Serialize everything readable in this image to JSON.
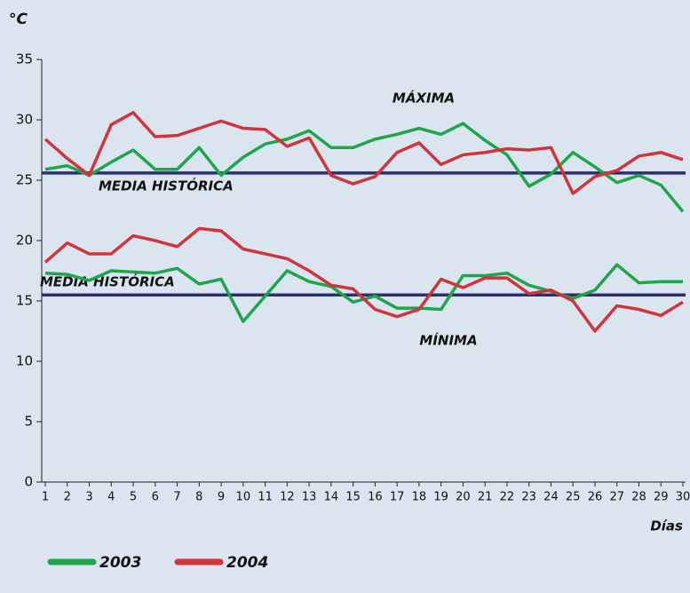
{
  "chart_data": {
    "type": "line",
    "y_label": "°C",
    "x_label": "Días",
    "x": [
      1,
      2,
      3,
      4,
      5,
      6,
      7,
      8,
      9,
      10,
      11,
      12,
      13,
      14,
      15,
      16,
      17,
      18,
      19,
      20,
      21,
      22,
      23,
      24,
      25,
      26,
      27,
      28,
      29,
      30
    ],
    "xlim": [
      1,
      30
    ],
    "ylim": [
      0,
      35
    ],
    "yticks": [
      0,
      5,
      10,
      15,
      20,
      25,
      30,
      35
    ],
    "series": [
      {
        "name": "2003",
        "color": "#1ea64b",
        "values": [
          25.9,
          26.2,
          25.4,
          26.5,
          27.5,
          25.9,
          25.9,
          27.7,
          25.4,
          26.9,
          28.0,
          28.4,
          29.1,
          27.7,
          27.7,
          28.4,
          28.8,
          29.3,
          28.8,
          29.7,
          28.3,
          27.1,
          24.5,
          25.5,
          27.3,
          26.1,
          24.8,
          25.4,
          24.6,
          22.4
        ]
      },
      {
        "name": "2004",
        "color": "#d1343b",
        "values": [
          28.4,
          26.8,
          25.4,
          29.6,
          30.6,
          28.6,
          28.7,
          29.3,
          29.9,
          29.3,
          29.2,
          27.8,
          28.5,
          25.4,
          24.7,
          25.3,
          27.3,
          28.1,
          26.3,
          27.1,
          27.3,
          27.6,
          27.5,
          27.7,
          23.9,
          25.3,
          25.8,
          27.0,
          27.3,
          26.7
        ]
      },
      {
        "color": "#1ea64b",
        "values": [
          17.3,
          17.2,
          16.7,
          17.5,
          17.4,
          17.3,
          17.7,
          16.4,
          16.8,
          13.3,
          15.4,
          17.5,
          16.6,
          16.2,
          14.9,
          15.4,
          14.4,
          14.4,
          14.3,
          17.1,
          17.1,
          17.3,
          16.3,
          15.8,
          15.2,
          15.9,
          18.0,
          16.5,
          16.6,
          16.6
        ]
      },
      {
        "color": "#d1343b",
        "values": [
          18.2,
          19.8,
          18.9,
          18.9,
          20.4,
          20.0,
          19.5,
          21.0,
          20.8,
          19.3,
          18.9,
          18.5,
          17.5,
          16.3,
          16.0,
          14.3,
          13.7,
          14.3,
          16.8,
          16.1,
          16.9,
          16.9,
          15.6,
          15.9,
          15.0,
          12.5,
          14.6,
          14.3,
          13.8,
          14.9
        ]
      }
    ],
    "reference_lines": [
      {
        "label": "MEDIA HISTÓRICA",
        "value": 25.6,
        "color": "#2b2e78"
      },
      {
        "label": "MEDIA HISTÓRICA",
        "value": 15.5,
        "color": "#2b2e78"
      }
    ],
    "annotations": [
      "MÁXIMA",
      "MÍNIMA"
    ]
  }
}
